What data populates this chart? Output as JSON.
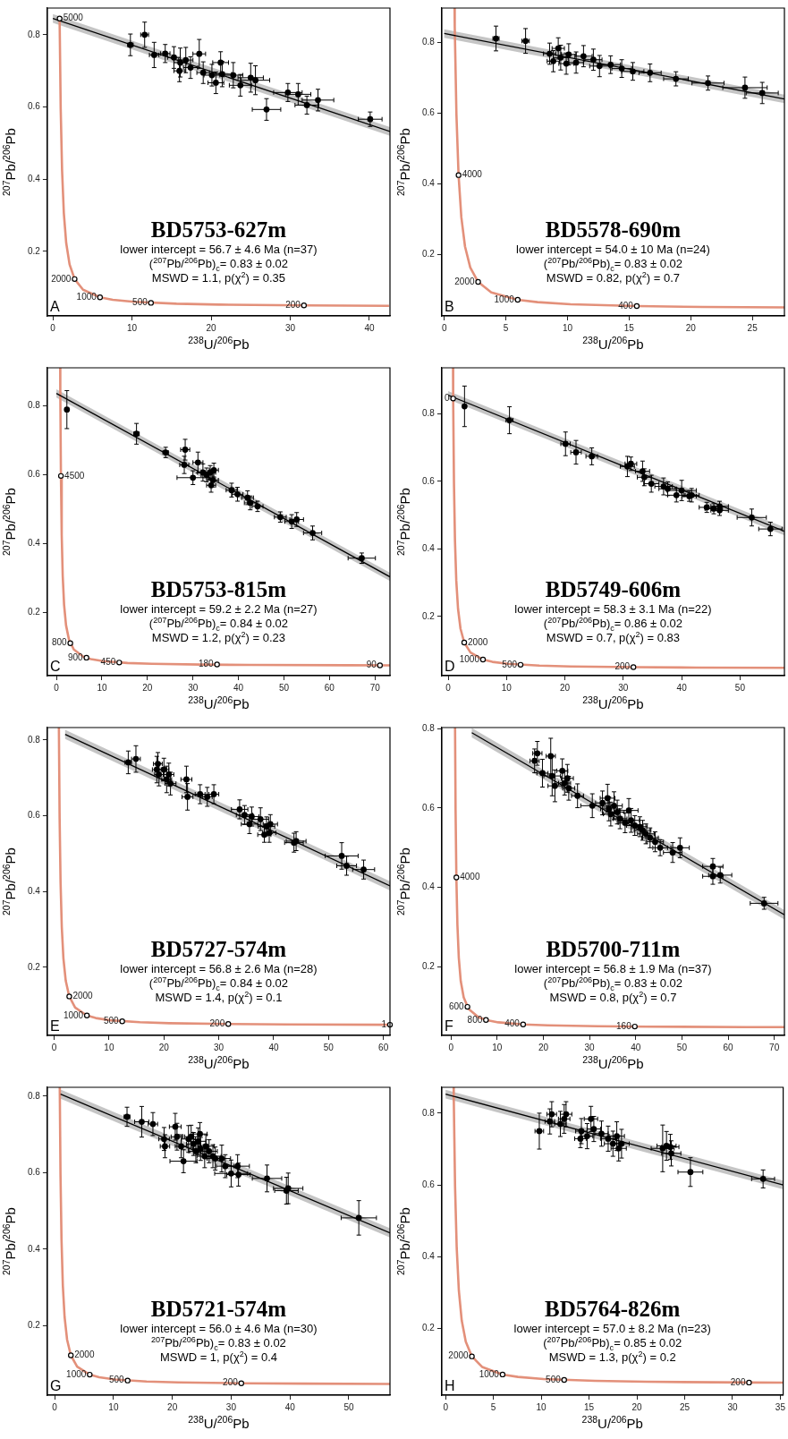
{
  "chart_data": [
    {
      "type": "scatter",
      "title": "BD5753-627m",
      "xlabel": "$^{238}$U/$^{206}$Pb",
      "ylabel": "$^{207}$Pb/$^{206}$Pb",
      "xlim": [
        -0.7,
        42.6
      ],
      "ylim": [
        0.021,
        0.874
      ],
      "xticks": [
        0,
        10,
        20,
        30,
        40
      ],
      "yticks": [
        0.2,
        0.4,
        0.6,
        0.8
      ],
      "annotations": [
        "lower intercept = 56.7 ± 4.6 Ma (n=37)",
        "($^{207}$Pb/$^{206}$Pb)$_{c}$= 0.83 ± 0.02",
        "MSWD = 1.1, p(χ$^{2}$) = 0.35",
        "A",
        {
          "text": "5000",
          "x": 0.853,
          "y": 0.845
        },
        {
          "text": "2000",
          "x": 2.749,
          "y": 0.123
        },
        {
          "text": "1000",
          "x": 5.96,
          "y": 0.0725
        },
        {
          "text": "500",
          "x": 12.4,
          "y": 0.0572
        },
        {
          "text": "200",
          "x": 31.73,
          "y": 0.0501
        }
      ],
      "series": [
        {
          "type": "scatter",
          "color": "#000000",
          "marker": "circle",
          "x": [
            9.8,
            11.6,
            12.8,
            14.2,
            15.3,
            16.1,
            16.8,
            16.0,
            17.4,
            18.5,
            19.0,
            20.1,
            20.6,
            21.2,
            21.4,
            22.8,
            23.7,
            25.0,
            25.6,
            27.0,
            29.7,
            31.0,
            32.1,
            33.5,
            40.1
          ],
          "values": [
            0.772,
            0.8,
            0.744,
            0.748,
            0.737,
            0.723,
            0.73,
            0.7,
            0.709,
            0.747,
            0.695,
            0.688,
            0.667,
            0.723,
            0.691,
            0.688,
            0.66,
            0.681,
            0.674,
            0.593,
            0.64,
            0.635,
            0.605,
            0.619,
            0.566
          ],
          "xerrors": [
            0.35,
            0.5,
            0.6,
            0.6,
            0.8,
            0.8,
            0.9,
            0.7,
            0.9,
            0.8,
            0.8,
            1.0,
            1.0,
            1.0,
            1.2,
            1.2,
            1.4,
            1.6,
            1.8,
            1.8,
            1.8,
            1.6,
            1.5,
            2.0,
            1.5
          ],
          "errors": [
            0.03,
            0.035,
            0.035,
            0.025,
            0.03,
            0.04,
            0.035,
            0.03,
            0.03,
            0.04,
            0.03,
            0.03,
            0.03,
            0.03,
            0.035,
            0.035,
            0.03,
            0.04,
            0.04,
            0.03,
            0.025,
            0.03,
            0.025,
            0.03,
            0.02
          ]
        },
        {
          "type": "line",
          "color": "#000000",
          "marker": "none",
          "x": [
            0,
            42.6
          ],
          "values": [
            0.845,
            0.532
          ],
          "lower": [
            0.833,
            0.52
          ],
          "upper": [
            0.857,
            0.544
          ]
        },
        {
          "type": "line",
          "color": "#e3907a",
          "marker": "none",
          "x": [
            0.853,
            0.99,
            1.163,
            1.387,
            1.687,
            2.111,
            2.749,
            3.817,
            5.96,
            7.57,
            10.25,
            15.62,
            20.99,
            31.73,
            42.48
          ],
          "values": [
            0.845,
            0.596,
            0.425,
            0.306,
            0.223,
            0.164,
            0.123,
            0.0936,
            0.0725,
            0.0658,
            0.0599,
            0.0547,
            0.0523,
            0.0501,
            0.049
          ]
        }
      ]
    },
    {
      "type": "scatter",
      "title": "BD5578-690m",
      "xlabel": "$^{238}$U/$^{206}$Pb",
      "ylabel": "$^{207}$Pb/$^{206}$Pb",
      "xlim": [
        -0.2,
        27.6
      ],
      "ylim": [
        0.027,
        0.897
      ],
      "xticks": [
        0,
        5,
        10,
        15,
        20,
        25
      ],
      "yticks": [
        0.2,
        0.4,
        0.6,
        0.8
      ],
      "annotations": [
        "lower intercept = 54.0 ± 10 Ma (n=24)",
        "($^{207}$Pb/$^{206}$Pb)$_{c}$= 0.83 ± 0.02",
        "MSWD = 0.82, p(χ$^{2}$) = 0.7",
        "B",
        {
          "text": "4000",
          "x": 1.163,
          "y": 0.425
        },
        {
          "text": "2000",
          "x": 2.749,
          "y": 0.123
        },
        {
          "text": "1000",
          "x": 5.96,
          "y": 0.0725
        },
        {
          "text": "400",
          "x": 15.62,
          "y": 0.0547
        }
      ],
      "series": [
        {
          "type": "scatter",
          "color": "#000000",
          "marker": "circle",
          "x": [
            4.2,
            6.6,
            8.55,
            8.85,
            9.25,
            9.45,
            9.9,
            10.1,
            10.7,
            11.3,
            12.1,
            12.6,
            13.5,
            14.4,
            15.3,
            16.7,
            18.8,
            21.4,
            24.4,
            25.8
          ],
          "values": [
            0.811,
            0.804,
            0.768,
            0.747,
            0.783,
            0.757,
            0.74,
            0.766,
            0.743,
            0.761,
            0.751,
            0.733,
            0.737,
            0.726,
            0.718,
            0.714,
            0.697,
            0.685,
            0.672,
            0.657
          ],
          "xerrors": [
            0.25,
            0.3,
            0.5,
            0.5,
            0.5,
            0.6,
            0.6,
            0.6,
            0.6,
            0.7,
            0.7,
            0.8,
            0.8,
            0.8,
            0.9,
            0.9,
            1.0,
            1.3,
            1.8,
            1.3
          ],
          "errors": [
            0.035,
            0.035,
            0.03,
            0.03,
            0.03,
            0.035,
            0.03,
            0.03,
            0.03,
            0.03,
            0.03,
            0.03,
            0.025,
            0.025,
            0.025,
            0.025,
            0.02,
            0.02,
            0.03,
            0.03
          ]
        },
        {
          "type": "line",
          "color": "#000000",
          "marker": "none",
          "x": [
            0,
            27.6
          ],
          "values": [
            0.825,
            0.64
          ],
          "lower": [
            0.813,
            0.628
          ],
          "upper": [
            0.837,
            0.652
          ]
        },
        {
          "type": "line",
          "color": "#e3907a",
          "marker": "none",
          "x": [
            0.84,
            0.853,
            0.99,
            1.163,
            1.387,
            1.687,
            2.111,
            2.749,
            3.817,
            5.96,
            7.57,
            10.25,
            15.62,
            20.99,
            27.6
          ],
          "values": [
            0.897,
            0.845,
            0.596,
            0.425,
            0.306,
            0.223,
            0.164,
            0.123,
            0.0936,
            0.0725,
            0.0658,
            0.0599,
            0.0547,
            0.0523,
            0.0512
          ]
        }
      ]
    },
    {
      "type": "scatter",
      "title": "BD5753-815m",
      "xlabel": "$^{238}$U/$^{206}$Pb",
      "ylabel": "$^{207}$Pb/$^{206}$Pb",
      "xlim": [
        -2,
        73.3
      ],
      "ylim": [
        0.018,
        0.909
      ],
      "xticks": [
        0,
        10,
        20,
        30,
        40,
        50,
        60,
        70
      ],
      "yticks": [
        0.2,
        0.4,
        0.6,
        0.8
      ],
      "annotations": [
        "lower intercept = 59.2 ± 2.2 Ma (n=27)",
        "($^{207}$Pb/$^{206}$Pb)$_{c}$= 0.84 ± 0.02",
        "MSWD = 1.2, p(χ$^{2}$) = 0.23",
        "C",
        {
          "text": "4500",
          "x": 0.99,
          "y": 0.596
        },
        {
          "text": "800",
          "x": 3.05,
          "y": 0.112
        },
        {
          "text": "900",
          "x": 6.6,
          "y": 0.07
        },
        {
          "text": "450",
          "x": 13.8,
          "y": 0.056
        },
        {
          "text": "180",
          "x": 35.3,
          "y": 0.0505
        },
        {
          "text": "90",
          "x": 71.1,
          "y": 0.0478
        }
      ],
      "series": [
        {
          "type": "scatter",
          "color": "#000000",
          "marker": "circle",
          "x": [
            2.3,
            17.6,
            24.0,
            28.3,
            28.1,
            30.0,
            31.1,
            32.2,
            33.0,
            33.8,
            34.4,
            34.6,
            34.0,
            38.5,
            39.8,
            42.0,
            42.6,
            44.2,
            49.2,
            51.7,
            52.8,
            56.3,
            67.1
          ],
          "values": [
            0.788,
            0.718,
            0.664,
            0.672,
            0.628,
            0.591,
            0.635,
            0.606,
            0.599,
            0.606,
            0.584,
            0.613,
            0.569,
            0.555,
            0.543,
            0.533,
            0.518,
            0.508,
            0.477,
            0.464,
            0.47,
            0.431,
            0.358
          ],
          "xerrors": [
            0.25,
            0.6,
            0.6,
            1.0,
            1.0,
            3.5,
            1.1,
            1.2,
            1.2,
            1.2,
            1.2,
            1.0,
            1.0,
            1.2,
            1.2,
            1.3,
            1.3,
            1.2,
            1.3,
            1.5,
            1.5,
            2.0,
            3.0
          ],
          "errors": [
            0.055,
            0.03,
            0.015,
            0.03,
            0.025,
            0.02,
            0.03,
            0.025,
            0.02,
            0.02,
            0.02,
            0.02,
            0.02,
            0.02,
            0.02,
            0.02,
            0.02,
            0.015,
            0.015,
            0.02,
            0.02,
            0.02,
            0.015
          ]
        },
        {
          "type": "line",
          "color": "#000000",
          "marker": "none",
          "x": [
            0,
            73.3
          ],
          "values": [
            0.835,
            0.304
          ],
          "lower": [
            0.823,
            0.292
          ],
          "upper": [
            0.847,
            0.316
          ]
        },
        {
          "type": "line",
          "color": "#e3907a",
          "marker": "none",
          "x": [
            0.835,
            0.853,
            0.99,
            1.163,
            1.387,
            1.687,
            2.111,
            2.749,
            3.817,
            5.96,
            7.57,
            10.25,
            15.62,
            20.99,
            31.73,
            42.48,
            63.96,
            73.3
          ],
          "values": [
            0.909,
            0.845,
            0.596,
            0.425,
            0.306,
            0.223,
            0.164,
            0.123,
            0.0936,
            0.0725,
            0.0658,
            0.0599,
            0.0547,
            0.0523,
            0.0501,
            0.049,
            0.048,
            0.0477
          ]
        }
      ]
    },
    {
      "type": "scatter",
      "title": "BD5749-606m",
      "xlabel": "$^{238}$U/$^{206}$Pb",
      "ylabel": "$^{207}$Pb/$^{206}$Pb",
      "xlim": [
        -1.1,
        57.6
      ],
      "ylim": [
        0.025,
        0.936
      ],
      "xticks": [
        0,
        10,
        20,
        30,
        40,
        50
      ],
      "yticks": [
        0.2,
        0.4,
        0.6,
        0.8
      ],
      "annotations": [
        "lower intercept = 58.3 ± 3.1 Ma (n=22)",
        "($^{207}$Pb/$^{206}$Pb)$_{c}$= 0.86 ± 0.02",
        "MSWD = 0.7, p(χ$^{2}$) = 0.83",
        "D",
        {
          "text": "0",
          "x": 0.853,
          "y": 0.845
        },
        {
          "text": "2000",
          "x": 2.749,
          "y": 0.123
        },
        {
          "text": "1000",
          "x": 5.96,
          "y": 0.0725
        },
        {
          "text": "500",
          "x": 12.4,
          "y": 0.0572
        },
        {
          "text": "200",
          "x": 31.73,
          "y": 0.0501
        }
      ],
      "series": [
        {
          "type": "scatter",
          "color": "#000000",
          "marker": "circle",
          "x": [
            2.8,
            10.5,
            20.1,
            21.9,
            24.6,
            30.7,
            31.3,
            33.3,
            33.6,
            34.8,
            36.9,
            37.6,
            39.1,
            40.0,
            41.3,
            41.7,
            44.3,
            45.5,
            46.5,
            46.5,
            52.0,
            55.2
          ],
          "values": [
            0.822,
            0.781,
            0.711,
            0.686,
            0.674,
            0.644,
            0.652,
            0.63,
            0.612,
            0.593,
            0.585,
            0.578,
            0.559,
            0.573,
            0.556,
            0.559,
            0.523,
            0.519,
            0.526,
            0.514,
            0.493,
            0.459
          ],
          "xerrors": [
            0.2,
            0.6,
            0.8,
            0.9,
            1.0,
            1.2,
            1.0,
            1.2,
            1.2,
            1.3,
            1.5,
            1.5,
            1.5,
            2.5,
            1.2,
            1.3,
            1.3,
            1.5,
            1.5,
            1.5,
            2.5,
            2.0
          ],
          "errors": [
            0.06,
            0.04,
            0.035,
            0.035,
            0.025,
            0.03,
            0.02,
            0.03,
            0.025,
            0.025,
            0.025,
            0.02,
            0.02,
            0.03,
            0.015,
            0.02,
            0.015,
            0.015,
            0.015,
            0.015,
            0.025,
            0.02
          ]
        },
        {
          "type": "line",
          "color": "#000000",
          "marker": "none",
          "x": [
            0,
            57.6
          ],
          "values": [
            0.855,
            0.452
          ],
          "lower": [
            0.843,
            0.44
          ],
          "upper": [
            0.867,
            0.464
          ]
        },
        {
          "type": "line",
          "color": "#e3907a",
          "marker": "none",
          "x": [
            0.83,
            0.853,
            0.99,
            1.163,
            1.387,
            1.687,
            2.111,
            2.749,
            3.817,
            5.96,
            7.57,
            10.25,
            15.62,
            20.99,
            31.73,
            42.48,
            57.6
          ],
          "values": [
            0.936,
            0.845,
            0.596,
            0.425,
            0.306,
            0.223,
            0.164,
            0.123,
            0.0936,
            0.0725,
            0.0658,
            0.0599,
            0.0547,
            0.0523,
            0.0501,
            0.049,
            0.0482
          ]
        }
      ]
    },
    {
      "type": "scatter",
      "title": "BD5727-574m",
      "xlabel": "$^{238}$U/$^{206}$Pb",
      "ylabel": "$^{207}$Pb/$^{206}$Pb",
      "xlim": [
        -1.25,
        61.2
      ],
      "ylim": [
        0.02,
        0.833
      ],
      "xticks": [
        0,
        10,
        20,
        30,
        40,
        50,
        60
      ],
      "yticks": [
        0.2,
        0.4,
        0.6,
        0.8
      ],
      "annotations": [
        "lower intercept = 56.8 ± 2.6 Ma (n=28)",
        "($^{207}$Pb/$^{206}$Pb)$_{c}$= 0.84 ± 0.02",
        "MSWD = 1.4, p(χ$^{2}$) = 0.1",
        "E",
        {
          "text": "2000",
          "x": 2.749,
          "y": 0.123
        },
        {
          "text": "1000",
          "x": 5.96,
          "y": 0.0725
        },
        {
          "text": "500",
          "x": 12.4,
          "y": 0.0572
        },
        {
          "text": "200",
          "x": 31.73,
          "y": 0.0501
        },
        {
          "text": "1",
          "x": 61.2,
          "y": 0.0481
        }
      ],
      "series": [
        {
          "type": "scatter",
          "color": "#000000",
          "marker": "circle",
          "x": [
            13.5,
            14.9,
            18.9,
            19.1,
            20.0,
            20.5,
            21.2,
            24.1,
            24.3,
            26.6,
            27.9,
            29.1,
            33.8,
            34.7,
            35.6,
            37.6,
            38.7,
            39.2,
            39.4,
            43.7,
            44.1,
            52.4,
            53.3,
            56.4,
            18.7,
            20.9,
            36.0,
            38.3
          ],
          "values": [
            0.741,
            0.75,
            0.737,
            0.709,
            0.722,
            0.696,
            0.685,
            0.696,
            0.65,
            0.657,
            0.65,
            0.657,
            0.617,
            0.602,
            0.578,
            0.591,
            0.572,
            0.555,
            0.578,
            0.529,
            0.533,
            0.494,
            0.468,
            0.458,
            0.722,
            0.709,
            0.598,
            0.55
          ],
          "xerrors": [
            0.6,
            0.8,
            0.8,
            0.8,
            0.9,
            0.9,
            1.0,
            1.0,
            1.0,
            0.9,
            0.9,
            0.9,
            1.5,
            1.5,
            1.5,
            1.5,
            1.5,
            1.2,
            1.3,
            1.7,
            1.8,
            3.0,
            1.8,
            2.0,
            0.8,
            0.9,
            1.3,
            1.2
          ],
          "errors": [
            0.03,
            0.035,
            0.03,
            0.03,
            0.03,
            0.035,
            0.03,
            0.035,
            0.035,
            0.025,
            0.025,
            0.025,
            0.025,
            0.025,
            0.025,
            0.03,
            0.025,
            0.025,
            0.025,
            0.025,
            0.025,
            0.035,
            0.025,
            0.025,
            0.035,
            0.03,
            0.025,
            0.02
          ]
        },
        {
          "type": "line",
          "color": "#000000",
          "marker": "none",
          "x": [
            2,
            61.2
          ],
          "values": [
            0.815,
            0.415
          ],
          "lower": [
            0.803,
            0.403
          ],
          "upper": [
            0.827,
            0.427
          ]
        },
        {
          "type": "line",
          "color": "#e3907a",
          "marker": "none",
          "x": [
            0.86,
            0.99,
            1.163,
            1.387,
            1.687,
            2.111,
            2.749,
            3.817,
            5.96,
            7.57,
            10.25,
            15.62,
            20.99,
            31.73,
            42.48,
            61.2
          ],
          "values": [
            0.833,
            0.596,
            0.425,
            0.306,
            0.223,
            0.164,
            0.123,
            0.0936,
            0.0725,
            0.0658,
            0.0599,
            0.0547,
            0.0523,
            0.0501,
            0.049,
            0.0481
          ]
        }
      ]
    },
    {
      "type": "scatter",
      "title": "BD5700-711m",
      "xlabel": "$^{238}$U/$^{206}$Pb",
      "ylabel": "$^{207}$Pb/$^{206}$Pb",
      "xlim": [
        -2,
        72.2
      ],
      "ylim": [
        0.027,
        0.803
      ],
      "xticks": [
        0,
        10,
        20,
        30,
        40,
        50,
        60,
        70
      ],
      "yticks": [
        0.2,
        0.4,
        0.6,
        0.8
      ],
      "annotations": [
        "lower intercept = 56.8 ± 1.9 Ma (n=37)",
        "($^{207}$Pb/$^{206}$Pb)$_{c}$= 0.83 ± 0.02",
        "MSWD = 0.8, p(χ$^{2}$) = 0.7",
        "F",
        {
          "text": "4000",
          "x": 1.163,
          "y": 0.425
        },
        {
          "text": "600",
          "x": 3.56,
          "y": 0.099
        },
        {
          "text": "800",
          "x": 7.57,
          "y": 0.0658
        },
        {
          "text": "400",
          "x": 15.62,
          "y": 0.0547
        },
        {
          "text": "160",
          "x": 39.8,
          "y": 0.0493
        }
      ],
      "series": [
        {
          "type": "scatter",
          "color": "#000000",
          "marker": "circle",
          "x": [
            18.1,
            18.7,
            19.8,
            21.6,
            21.9,
            22.5,
            24.1,
            24.6,
            25.2,
            25.5,
            27.4,
            30.6,
            32.8,
            33.9,
            34.2,
            34.6,
            35.3,
            36.0,
            36.6,
            37.7,
            38.5,
            39.0,
            39.8,
            40.9,
            41.5,
            42.2,
            43.1,
            44.2,
            45.3,
            48.0,
            49.6,
            56.7,
            56.7,
            58.3,
            67.8
          ],
          "values": [
            0.719,
            0.738,
            0.688,
            0.731,
            0.681,
            0.656,
            0.694,
            0.663,
            0.675,
            0.65,
            0.631,
            0.606,
            0.613,
            0.625,
            0.598,
            0.585,
            0.606,
            0.59,
            0.573,
            0.563,
            0.594,
            0.569,
            0.556,
            0.553,
            0.544,
            0.535,
            0.525,
            0.515,
            0.5,
            0.488,
            0.5,
            0.453,
            0.428,
            0.431,
            0.36
          ],
          "xerrors": [
            1.0,
            1.0,
            1.2,
            1.0,
            1.8,
            1.5,
            1.2,
            1.3,
            1.3,
            1.3,
            1.3,
            2.5,
            1.5,
            1.6,
            1.8,
            1.6,
            1.8,
            1.5,
            1.5,
            1.5,
            2.0,
            1.8,
            1.8,
            1.6,
            1.8,
            1.8,
            1.8,
            1.8,
            1.6,
            2.0,
            2.0,
            2.2,
            2.2,
            2.5,
            3.0
          ],
          "errors": [
            0.03,
            0.03,
            0.035,
            0.045,
            0.05,
            0.04,
            0.03,
            0.03,
            0.035,
            0.03,
            0.03,
            0.03,
            0.03,
            0.035,
            0.03,
            0.03,
            0.035,
            0.03,
            0.025,
            0.025,
            0.03,
            0.03,
            0.025,
            0.025,
            0.025,
            0.025,
            0.025,
            0.025,
            0.02,
            0.025,
            0.025,
            0.02,
            0.02,
            0.02,
            0.015
          ]
        },
        {
          "type": "line",
          "color": "#000000",
          "marker": "none",
          "x": [
            4.5,
            72.2
          ],
          "values": [
            0.79,
            0.331
          ],
          "lower": [
            0.778,
            0.319
          ],
          "upper": [
            0.802,
            0.343
          ]
        },
        {
          "type": "line",
          "color": "#e3907a",
          "marker": "none",
          "x": [
            0.88,
            0.99,
            1.163,
            1.387,
            1.687,
            2.111,
            2.749,
            3.817,
            5.96,
            7.57,
            10.25,
            15.62,
            20.99,
            31.73,
            42.48,
            63.96,
            72.2
          ],
          "values": [
            0.803,
            0.596,
            0.425,
            0.306,
            0.223,
            0.164,
            0.123,
            0.0936,
            0.0725,
            0.0658,
            0.0599,
            0.0547,
            0.0523,
            0.0501,
            0.049,
            0.048,
            0.0478
          ]
        }
      ]
    },
    {
      "type": "scatter",
      "title": "BD5721-574m",
      "xlabel": "$^{238}$U/$^{206}$Pb",
      "ylabel": "$^{207}$Pb/$^{206}$Pb",
      "xlim": [
        -1.25,
        57
      ],
      "ylim": [
        0.019,
        0.823
      ],
      "xticks": [
        0,
        10,
        20,
        30,
        40,
        50
      ],
      "yticks": [
        0.2,
        0.4,
        0.6,
        0.8
      ],
      "annotations": [
        "lower intercept = 56.0 ± 4.6 Ma (n=30)",
        "$^{207}$Pb/$^{206}$Pb)$_{c}$= 0.83 ± 0.02",
        "MSWD = 1, p(χ$^{2}$) = 0.4",
        "G",
        {
          "text": "2000",
          "x": 2.749,
          "y": 0.123
        },
        {
          "text": "1000",
          "x": 5.96,
          "y": 0.0725
        },
        {
          "text": "500",
          "x": 12.4,
          "y": 0.0572
        },
        {
          "text": "200",
          "x": 31.73,
          "y": 0.0501
        }
      ],
      "series": [
        {
          "type": "scatter",
          "color": "#000000",
          "marker": "circle",
          "x": [
            12.3,
            14.8,
            16.7,
            18.6,
            18.75,
            20.5,
            20.8,
            21.5,
            21.9,
            22.75,
            23.2,
            23.6,
            24.0,
            24.4,
            24.7,
            24.8,
            25.5,
            25.7,
            26.25,
            26.9,
            27.3,
            28.4,
            29.0,
            30.0,
            31.1,
            31.25,
            36.1,
            39.4,
            39.7,
            51.7
          ],
          "values": [
            0.746,
            0.733,
            0.727,
            0.688,
            0.669,
            0.72,
            0.694,
            0.669,
            0.63,
            0.688,
            0.694,
            0.675,
            0.656,
            0.682,
            0.701,
            0.662,
            0.643,
            0.669,
            0.656,
            0.643,
            0.637,
            0.637,
            0.617,
            0.598,
            0.617,
            0.595,
            0.585,
            0.553,
            0.559,
            0.482
          ],
          "xerrors": [
            0.5,
            1.2,
            0.8,
            0.9,
            0.8,
            1.0,
            1.0,
            1.0,
            2.3,
            1.2,
            1.1,
            1.2,
            1.2,
            1.3,
            1.2,
            1.3,
            1.3,
            1.4,
            1.4,
            1.4,
            1.4,
            1.5,
            1.5,
            2.8,
            2.0,
            2.0,
            2.5,
            2.0,
            2.5,
            3.0
          ],
          "errors": [
            0.025,
            0.04,
            0.03,
            0.03,
            0.03,
            0.035,
            0.035,
            0.03,
            0.03,
            0.035,
            0.03,
            0.03,
            0.03,
            0.035,
            0.03,
            0.03,
            0.03,
            0.03,
            0.03,
            0.03,
            0.03,
            0.035,
            0.03,
            0.035,
            0.03,
            0.03,
            0.035,
            0.035,
            0.04,
            0.045
          ]
        },
        {
          "type": "line",
          "color": "#000000",
          "marker": "none",
          "x": [
            1,
            57
          ],
          "values": [
            0.805,
            0.443
          ],
          "lower": [
            0.793,
            0.431
          ],
          "upper": [
            0.817,
            0.455
          ]
        },
        {
          "type": "line",
          "color": "#e3907a",
          "marker": "none",
          "x": [
            0.865,
            0.99,
            1.163,
            1.387,
            1.687,
            2.111,
            2.749,
            3.817,
            5.96,
            7.57,
            10.25,
            15.62,
            20.99,
            31.73,
            42.48,
            57
          ],
          "values": [
            0.823,
            0.596,
            0.425,
            0.306,
            0.223,
            0.164,
            0.123,
            0.0936,
            0.0725,
            0.0658,
            0.0599,
            0.0547,
            0.0523,
            0.0501,
            0.049,
            0.0482
          ]
        }
      ]
    },
    {
      "type": "scatter",
      "title": "BD5764-826m",
      "xlabel": "$^{238}$U/$^{206}$Pb",
      "ylabel": "$^{207}$Pb/$^{206}$Pb",
      "xlim": [
        -0.4,
        35.3
      ],
      "ylim": [
        0.015,
        0.872
      ],
      "xticks": [
        0,
        5,
        10,
        15,
        20,
        25,
        30,
        35
      ],
      "yticks": [
        0.2,
        0.4,
        0.6,
        0.8
      ],
      "annotations": [
        "lower intercept = 57.0 ± 8.2 Ma (n=23)",
        "($^{207}$Pb/$^{206}$Pb)$_{c}$= 0.85 ± 0.02",
        "MSWD = 1.3, p(χ$^{2}$) = 0.2",
        "H",
        {
          "text": "2000",
          "x": 2.749,
          "y": 0.123
        },
        {
          "text": "1000",
          "x": 5.96,
          "y": 0.0725
        },
        {
          "text": "500",
          "x": 12.4,
          "y": 0.0572
        },
        {
          "text": "200",
          "x": 31.73,
          "y": 0.0501
        }
      ],
      "series": [
        {
          "type": "scatter",
          "color": "#000000",
          "marker": "circle",
          "x": [
            9.8,
            10.9,
            11.1,
            12.0,
            12.4,
            12.6,
            14.1,
            14.2,
            14.8,
            15.2,
            15.5,
            16.3,
            17.0,
            17.5,
            17.9,
            18.1,
            18.4,
            22.7,
            23.1,
            23.5,
            23.6,
            25.6,
            33.2
          ],
          "values": [
            0.75,
            0.777,
            0.797,
            0.77,
            0.784,
            0.797,
            0.729,
            0.75,
            0.736,
            0.784,
            0.756,
            0.743,
            0.729,
            0.715,
            0.736,
            0.702,
            0.715,
            0.702,
            0.709,
            0.706,
            0.688,
            0.636,
            0.617
          ],
          "xerrors": [
            0.45,
            0.5,
            0.5,
            0.6,
            0.6,
            0.6,
            0.6,
            0.6,
            0.6,
            0.7,
            0.7,
            0.7,
            0.8,
            0.9,
            0.8,
            0.8,
            0.8,
            1.2,
            1.0,
            0.9,
            1.0,
            1.3,
            1.2
          ],
          "errors": [
            0.05,
            0.035,
            0.035,
            0.035,
            0.04,
            0.035,
            0.025,
            0.035,
            0.035,
            0.035,
            0.035,
            0.035,
            0.035,
            0.035,
            0.04,
            0.035,
            0.04,
            0.065,
            0.04,
            0.035,
            0.035,
            0.04,
            0.025
          ]
        },
        {
          "type": "line",
          "color": "#000000",
          "marker": "none",
          "x": [
            0,
            35.3
          ],
          "values": [
            0.853,
            0.6
          ],
          "lower": [
            0.841,
            0.588
          ],
          "upper": [
            0.865,
            0.612
          ]
        },
        {
          "type": "line",
          "color": "#e3907a",
          "marker": "none",
          "x": [
            0.845,
            0.853,
            0.99,
            1.163,
            1.387,
            1.687,
            2.111,
            2.749,
            3.817,
            5.96,
            7.57,
            10.25,
            15.62,
            20.99,
            31.73,
            35.3
          ],
          "values": [
            0.872,
            0.845,
            0.596,
            0.425,
            0.306,
            0.223,
            0.164,
            0.123,
            0.0936,
            0.0725,
            0.0658,
            0.0599,
            0.0547,
            0.0523,
            0.0501,
            0.0497
          ]
        }
      ]
    }
  ]
}
